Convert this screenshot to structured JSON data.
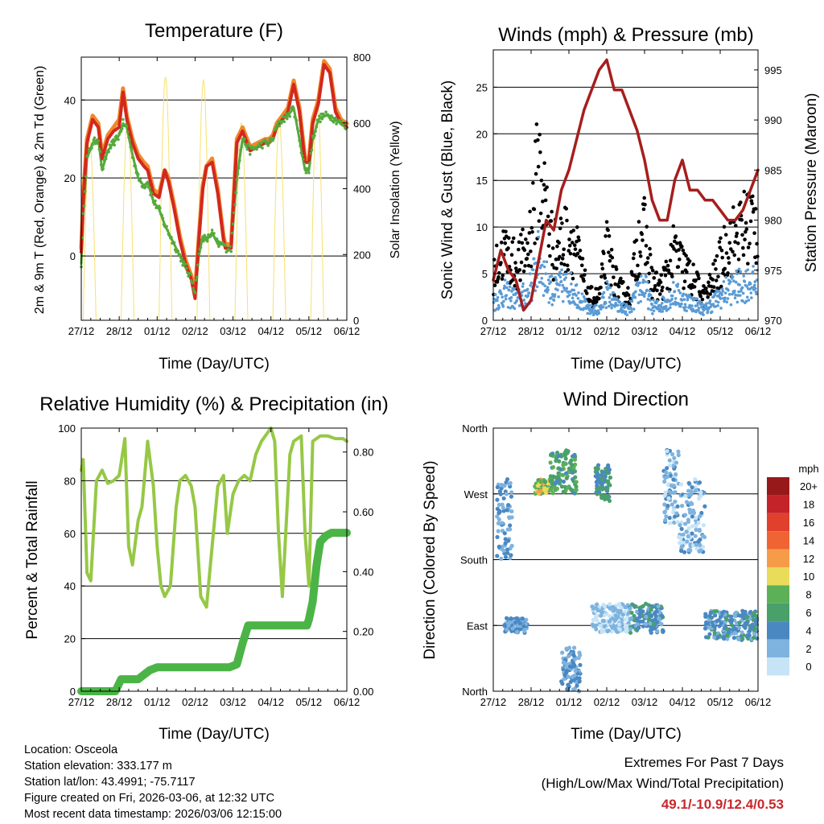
{
  "x_ticks": [
    "27/12",
    "28/12",
    "01/12",
    "02/12",
    "03/12",
    "04/12",
    "05/12",
    "06/12"
  ],
  "info": {
    "location": "Location: Osceola",
    "elevation": "Station elevation: 333.177 m",
    "latlon": "Station lat/lon: 43.4991; -75.7117",
    "created": "Figure created on Fri, 2026-03-06, at 12:32 UTC",
    "recent": "Most recent data timestamp: 2026/03/06 12:15:00"
  },
  "extremes": {
    "title": "Extremes For Past 7 Days",
    "subtitle": "(High/Low/Max Wind/Total Precipitation)",
    "values": "49.1/-10.9/12.4/0.53",
    "value_color": "#c8282d"
  },
  "chart_data": [
    {
      "id": "temperature",
      "type": "line",
      "title": "Temperature (F)",
      "xlabel": "Time (Day/UTC)",
      "ylabel": "2m & 9m T (Red, Orange) & 2m Td (Green)",
      "y2label": "Solar Insolation (Yellow)",
      "xlim": [
        0,
        7
      ],
      "ylim": [
        -16.5,
        51
      ],
      "y2lim": [
        0,
        800
      ],
      "yticks": [
        0,
        20,
        40
      ],
      "y2ticks": [
        0,
        200,
        400,
        600,
        800
      ],
      "grid": true,
      "series": [
        {
          "name": "9m T",
          "color": "#f0882c",
          "width": 5,
          "x": [
            0,
            0.05,
            0.15,
            0.3,
            0.45,
            0.55,
            0.7,
            0.85,
            1.0,
            1.1,
            1.2,
            1.35,
            1.5,
            1.65,
            1.75,
            1.9,
            2.05,
            2.2,
            2.3,
            2.45,
            2.6,
            2.75,
            2.9,
            3.0,
            3.1,
            3.2,
            3.3,
            3.45,
            3.6,
            3.75,
            3.8,
            3.95,
            4.1,
            4.25,
            4.45,
            4.65,
            4.85,
            4.95,
            5.05,
            5.15,
            5.3,
            5.45,
            5.6,
            5.75,
            5.9,
            6.0,
            6.1,
            6.25,
            6.4,
            6.55,
            6.7,
            6.85,
            7.0
          ],
          "y": [
            2,
            15,
            30,
            36,
            34,
            26,
            31,
            33,
            35,
            43,
            36,
            30,
            26,
            24,
            23,
            17,
            16,
            22,
            20,
            13,
            5,
            -1,
            -5,
            -9,
            5,
            18,
            23,
            25,
            17,
            5,
            3,
            3,
            30,
            33,
            28,
            29,
            30,
            30,
            31,
            34,
            36,
            38,
            45,
            38,
            25,
            25,
            35,
            40,
            50,
            48,
            38,
            35,
            34
          ]
        },
        {
          "name": "2m T",
          "color": "#d2281e",
          "width": 4,
          "x": [
            0,
            0.05,
            0.15,
            0.3,
            0.45,
            0.55,
            0.7,
            0.85,
            1.0,
            1.1,
            1.2,
            1.35,
            1.5,
            1.65,
            1.75,
            1.9,
            2.05,
            2.2,
            2.3,
            2.45,
            2.6,
            2.75,
            2.9,
            3.0,
            3.1,
            3.2,
            3.3,
            3.45,
            3.6,
            3.75,
            3.8,
            3.95,
            4.1,
            4.25,
            4.45,
            4.65,
            4.85,
            4.95,
            5.05,
            5.15,
            5.3,
            5.45,
            5.6,
            5.75,
            5.9,
            6.0,
            6.1,
            6.25,
            6.4,
            6.55,
            6.7,
            6.85,
            7.0
          ],
          "y": [
            1,
            14,
            29,
            35,
            33,
            25,
            30,
            32,
            33,
            42,
            35,
            29,
            25,
            23,
            22,
            16,
            15,
            22,
            19,
            12,
            4,
            -2,
            -6,
            -10.9,
            4,
            17,
            23,
            24,
            16,
            4,
            2,
            2,
            29,
            32,
            27,
            28,
            29,
            29,
            30,
            33,
            35,
            37,
            44,
            37,
            24,
            24,
            34,
            39,
            49.1,
            47,
            37,
            34,
            33
          ]
        },
        {
          "name": "2m Td",
          "color": "#55aa3c",
          "width": 3,
          "x": [
            0,
            0.05,
            0.15,
            0.3,
            0.45,
            0.55,
            0.7,
            0.85,
            1.0,
            1.1,
            1.2,
            1.35,
            1.5,
            1.65,
            1.75,
            1.9,
            2.05,
            2.2,
            2.3,
            2.45,
            2.6,
            2.75,
            2.9,
            3.0,
            3.1,
            3.2,
            3.3,
            3.45,
            3.6,
            3.75,
            3.8,
            3.95,
            4.1,
            4.25,
            4.45,
            4.65,
            4.85,
            4.95,
            5.05,
            5.15,
            5.3,
            5.45,
            5.6,
            5.75,
            5.9,
            6.0,
            6.1,
            6.25,
            6.4,
            6.55,
            6.7,
            6.85,
            7.0
          ],
          "y": [
            -2,
            10,
            25,
            29,
            30,
            22,
            27,
            29,
            31,
            34,
            33,
            26,
            20,
            18,
            19,
            14,
            12,
            8,
            6,
            3,
            0,
            -3,
            -6,
            -9,
            0,
            5,
            4,
            6,
            3,
            3,
            2,
            2,
            20,
            30,
            27,
            28,
            29,
            29,
            30,
            33,
            35,
            36,
            38,
            30,
            22,
            22,
            30,
            35,
            36,
            36,
            35,
            34,
            33
          ]
        }
      ],
      "solar": {
        "name": "Solar Insolation",
        "color": "#f8e070",
        "peaks_x": [
          0.22,
          1.22,
          2.22,
          3.22,
          4.22,
          5.22,
          6.22
        ],
        "peaks_y": [
          550,
          610,
          740,
          730,
          600,
          600,
          680
        ]
      }
    },
    {
      "id": "winds",
      "type": "scatter",
      "title": "Winds (mph) & Pressure (mb)",
      "xlabel": "Time (Day/UTC)",
      "ylabel": "Sonic Wind & Gust (Blue, Black)",
      "y2label": "Station Pressure (Maroon)",
      "xlim": [
        0,
        7
      ],
      "ylim": [
        0,
        29
      ],
      "y2lim": [
        970,
        997
      ],
      "yticks": [
        0,
        5,
        10,
        15,
        20,
        25
      ],
      "y2ticks": [
        970,
        975,
        980,
        985,
        990,
        995
      ],
      "grid": true,
      "gust_envelope": {
        "color": "#000000",
        "x": [
          0,
          0.3,
          0.6,
          0.9,
          1.0,
          1.2,
          1.4,
          1.6,
          1.8,
          2.0,
          2.2,
          2.5,
          2.8,
          3.0,
          3.3,
          3.6,
          3.9,
          4.0,
          4.2,
          4.4,
          4.6,
          4.8,
          5.0,
          5.3,
          5.6,
          5.9,
          6.2,
          6.5,
          6.8,
          7.0
        ],
        "y": [
          6,
          9,
          7,
          9,
          12,
          20,
          14,
          9,
          10,
          11,
          9,
          3,
          3,
          9,
          4,
          3,
          12,
          11,
          5,
          4,
          6,
          9,
          7,
          5,
          3,
          6,
          10,
          11,
          13,
          12
        ]
      },
      "wind_envelope": {
        "color": "#5a9bd5",
        "x": [
          0,
          0.3,
          0.6,
          0.9,
          1.0,
          1.2,
          1.4,
          1.6,
          1.8,
          2.0,
          2.2,
          2.5,
          2.8,
          3.0,
          3.3,
          3.6,
          3.9,
          4.0,
          4.2,
          4.4,
          4.6,
          4.8,
          5.0,
          5.3,
          5.6,
          5.9,
          6.2,
          6.5,
          6.8,
          7.0
        ],
        "y": [
          2.5,
          4,
          3,
          4,
          5,
          9,
          6,
          4,
          5,
          5,
          4,
          1.5,
          1.5,
          4,
          2,
          1.5,
          5,
          5,
          2,
          2,
          3,
          4,
          3,
          2.5,
          1.5,
          3,
          4.5,
          5,
          5.5,
          5
        ]
      },
      "pressure": {
        "name": "Station Pressure",
        "color": "#a61e1e",
        "x": [
          0,
          0.2,
          0.4,
          0.6,
          0.8,
          1.0,
          1.2,
          1.4,
          1.6,
          1.8,
          2.0,
          2.2,
          2.4,
          2.6,
          2.8,
          3.0,
          3.2,
          3.4,
          3.6,
          3.8,
          4.0,
          4.2,
          4.4,
          4.6,
          4.8,
          5.0,
          5.2,
          5.4,
          5.6,
          5.8,
          6.0,
          6.2,
          6.4,
          6.6,
          6.8,
          7.0
        ],
        "y": [
          974,
          977,
          975,
          974,
          971,
          972,
          976,
          980,
          979,
          983,
          985,
          988,
          991,
          993,
          995,
          996,
          993,
          993,
          991,
          989,
          986,
          982,
          980,
          980,
          984,
          986,
          983,
          983,
          982,
          982,
          981,
          980,
          980,
          981,
          983,
          985
        ]
      }
    },
    {
      "id": "humidity",
      "type": "line",
      "title": "Relative Humidity (%) & Precipitation (in)",
      "xlabel": "Time (Day/UTC)",
      "ylabel": "Percent & Total Rainfall",
      "xlim": [
        0,
        7
      ],
      "ylim": [
        0,
        100
      ],
      "y2lim": [
        0,
        0.88
      ],
      "yticks": [
        0,
        20,
        40,
        60,
        80,
        100
      ],
      "y2ticks": [
        0.0,
        0.2,
        0.4,
        0.6,
        0.8
      ],
      "y2ticklabels": [
        "0.00",
        "0.20",
        "0.40",
        "0.60",
        "0.80"
      ],
      "grid": true,
      "series": [
        {
          "name": "Relative Humidity",
          "color": "#96c846",
          "width": 4,
          "x": [
            0,
            0.05,
            0.15,
            0.25,
            0.4,
            0.55,
            0.7,
            0.85,
            1.0,
            1.15,
            1.25,
            1.35,
            1.5,
            1.6,
            1.75,
            1.9,
            2.0,
            2.1,
            2.2,
            2.35,
            2.5,
            2.6,
            2.75,
            2.9,
            3.0,
            3.15,
            3.3,
            3.45,
            3.6,
            3.75,
            3.85,
            4.0,
            4.15,
            4.3,
            4.45,
            4.6,
            4.75,
            4.9,
            5.0,
            5.1,
            5.2,
            5.3,
            5.5,
            5.6,
            5.7,
            5.8,
            5.9,
            6.0,
            6.1,
            6.3,
            6.5,
            6.7,
            6.9,
            7.0
          ],
          "y": [
            84,
            88,
            45,
            42,
            80,
            84,
            79,
            80,
            82,
            96,
            55,
            48,
            65,
            70,
            95,
            78,
            55,
            40,
            36,
            40,
            70,
            80,
            82,
            78,
            70,
            36,
            32,
            55,
            78,
            82,
            60,
            75,
            80,
            82,
            80,
            90,
            95,
            98,
            100,
            95,
            60,
            36,
            90,
            95,
            96,
            97,
            60,
            40,
            95,
            97,
            97,
            96,
            96,
            95
          ]
        },
        {
          "name": "Total Precipitation",
          "color": "#4bb446",
          "width": 10,
          "axis": "y2",
          "x": [
            0,
            0.9,
            1.05,
            1.2,
            1.5,
            1.8,
            2.0,
            2.3,
            2.6,
            2.9,
            3.2,
            3.6,
            3.9,
            4.1,
            4.25,
            4.4,
            4.6,
            4.9,
            5.2,
            5.6,
            5.95,
            6.0,
            6.1,
            6.2,
            6.3,
            6.45,
            6.6,
            7.0
          ],
          "y": [
            0,
            0,
            0.04,
            0.04,
            0.04,
            0.07,
            0.08,
            0.08,
            0.08,
            0.08,
            0.08,
            0.08,
            0.08,
            0.09,
            0.16,
            0.22,
            0.22,
            0.22,
            0.22,
            0.22,
            0.22,
            0.24,
            0.3,
            0.42,
            0.5,
            0.52,
            0.53,
            0.53
          ]
        }
      ]
    },
    {
      "id": "direction",
      "type": "scatter",
      "title": "Wind Direction",
      "xlabel": "Time (Day/UTC)",
      "ylabel": "Direction (Colored By Speed)",
      "xlim": [
        0,
        7
      ],
      "ylim": [
        0,
        360
      ],
      "yticks": [
        0,
        90,
        180,
        270,
        360
      ],
      "yticklabels": [
        "North",
        "East",
        "South",
        "West",
        "North"
      ],
      "grid": true,
      "legend": {
        "title": "mph",
        "placement": "right",
        "labels": [
          "20+",
          "18",
          "16",
          "14",
          "12",
          "10",
          "8",
          "6",
          "4",
          "2",
          "0"
        ],
        "colors": [
          "#98191a",
          "#c4232a",
          "#e0402c",
          "#ef6432",
          "#f69c49",
          "#e8dc5a",
          "#5cb158",
          "#4aa06b",
          "#4a88c2",
          "#7fb3df",
          "#c6e4f6"
        ]
      },
      "clusters": [
        {
          "x": [
            0.1,
            0.5
          ],
          "y": [
            180,
            290
          ],
          "speeds": [
            2,
            4
          ]
        },
        {
          "x": [
            0.3,
            0.9
          ],
          "y": [
            80,
            100
          ],
          "speeds": [
            2,
            4
          ]
        },
        {
          "x": [
            1.1,
            1.5
          ],
          "y": [
            270,
            290
          ],
          "speeds": [
            6,
            12
          ]
        },
        {
          "x": [
            1.5,
            2.2
          ],
          "y": [
            270,
            330
          ],
          "speeds": [
            4,
            8
          ]
        },
        {
          "x": [
            1.8,
            2.3
          ],
          "y": [
            0,
            60
          ],
          "speeds": [
            2,
            4
          ]
        },
        {
          "x": [
            2.7,
            3.1
          ],
          "y": [
            260,
            310
          ],
          "speeds": [
            4,
            6
          ]
        },
        {
          "x": [
            2.6,
            3.6
          ],
          "y": [
            80,
            120
          ],
          "speeds": [
            0,
            2
          ]
        },
        {
          "x": [
            3.6,
            4.5
          ],
          "y": [
            80,
            120
          ],
          "speeds": [
            2,
            6
          ]
        },
        {
          "x": [
            4.5,
            4.9
          ],
          "y": [
            230,
            330
          ],
          "speeds": [
            0,
            4
          ]
        },
        {
          "x": [
            4.9,
            5.6
          ],
          "y": [
            190,
            290
          ],
          "speeds": [
            0,
            4
          ]
        },
        {
          "x": [
            5.6,
            7.0
          ],
          "y": [
            70,
            110
          ],
          "speeds": [
            2,
            6
          ]
        }
      ]
    }
  ]
}
